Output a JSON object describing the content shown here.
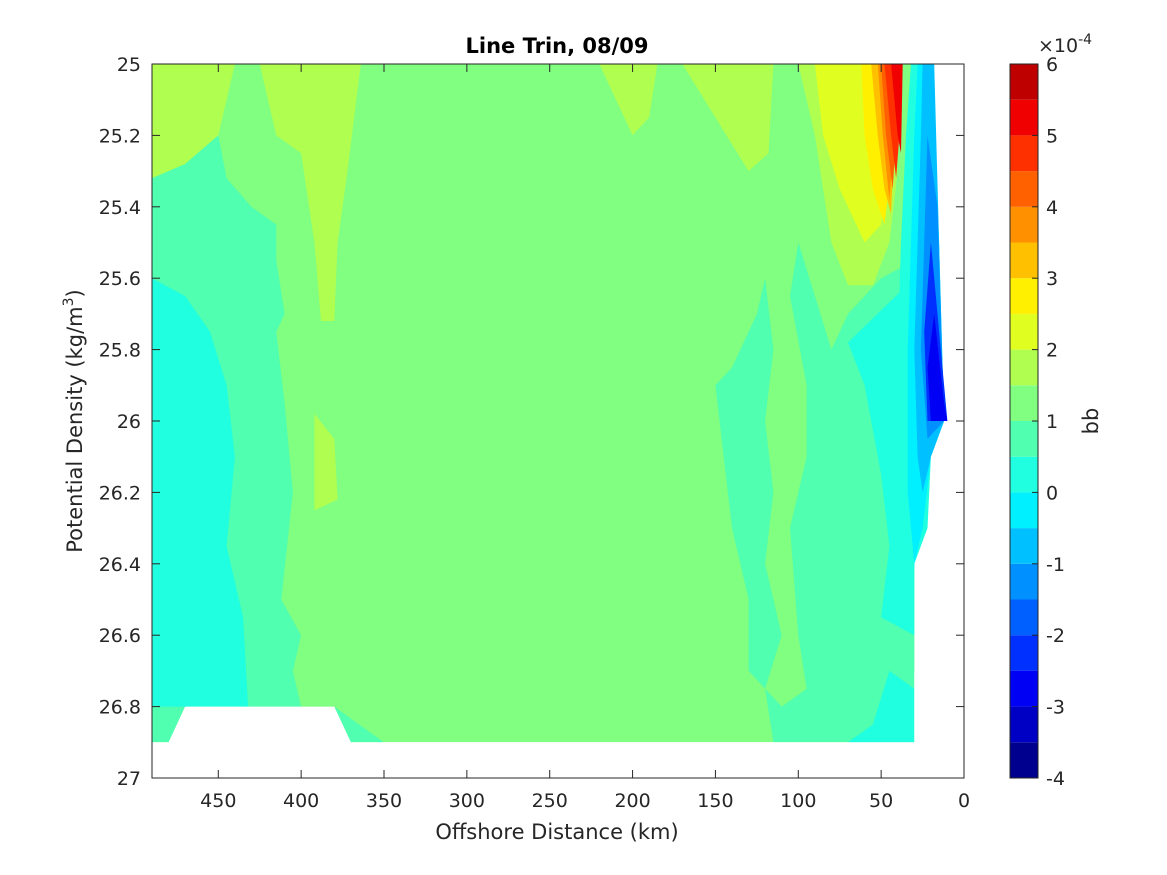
{
  "chart_data": {
    "type": "heatmap",
    "title": "Line Trin, 08/09",
    "xlabel": "Offshore Distance (km)",
    "ylabel_main": "Potential Density (kg/m",
    "ylabel_sup": "3",
    "ylabel_end": ")",
    "xlim": [
      0,
      490
    ],
    "x_reversed": true,
    "ylim": [
      25,
      27
    ],
    "y_reversed": true,
    "x_ticks": [
      450,
      400,
      350,
      300,
      250,
      200,
      150,
      100,
      50,
      0
    ],
    "y_ticks": [
      25,
      25.2,
      25.4,
      25.6,
      25.8,
      26,
      26.2,
      26.4,
      26.6,
      26.8,
      27
    ],
    "x_tick_labels": [
      "450",
      "400",
      "350",
      "300",
      "250",
      "200",
      "150",
      "100",
      "50",
      "0"
    ],
    "y_tick_labels": [
      "25",
      "25.2",
      "25.4",
      "25.6",
      "25.8",
      "26",
      "26.2",
      "26.4",
      "26.6",
      "26.8",
      "27"
    ],
    "colorbar": {
      "label": "bb",
      "multiplier": "×10",
      "exponent": "-4",
      "range": [
        -4,
        6
      ],
      "levels": [
        -4,
        -3.5,
        -3,
        -2.5,
        -2,
        -1.5,
        -1,
        -0.5,
        0,
        0.5,
        1,
        1.5,
        2,
        2.5,
        3,
        3.5,
        4,
        4.5,
        5,
        5.5,
        6
      ],
      "colors": [
        "#00008f",
        "#0000c4",
        "#0000f5",
        "#0030ff",
        "#0060ff",
        "#0090ff",
        "#00c0ff",
        "#00f0ff",
        "#20ffdf",
        "#50ffaf",
        "#80ff80",
        "#b0ff50",
        "#e0ff20",
        "#fff000",
        "#ffc000",
        "#ff9000",
        "#ff6000",
        "#ff3000",
        "#f00000",
        "#bf0000"
      ],
      "tick_values": [
        6,
        5,
        4,
        3,
        2,
        1,
        0,
        -1,
        -2,
        -3,
        -4
      ],
      "tick_labels": [
        "6",
        "5",
        "4",
        "3",
        "2",
        "1",
        "0",
        "-1",
        "-2",
        "-3",
        "-4"
      ]
    },
    "data_coverage": {
      "bottom_boundary": [
        [
          490,
          26.9
        ],
        [
          480,
          26.9
        ],
        [
          470,
          26.8
        ],
        [
          380,
          26.8
        ],
        [
          370,
          26.9
        ],
        [
          30,
          26.9
        ],
        [
          30,
          26.7
        ],
        [
          20,
          26.6
        ],
        [
          20,
          26.1
        ],
        [
          10,
          26.0
        ],
        [
          10,
          25.0
        ]
      ]
    },
    "regions": [
      {
        "level": 1.25,
        "polygon": [
          [
            490,
            25
          ],
          [
            490,
            26.9
          ],
          [
            30,
            26.9
          ],
          [
            30,
            25
          ]
        ]
      },
      {
        "level": 1.75,
        "polygon": [
          [
            490,
            25.0
          ],
          [
            490,
            25.32
          ],
          [
            470,
            25.28
          ],
          [
            450,
            25.2
          ],
          [
            440,
            25.0
          ]
        ]
      },
      {
        "level": 1.75,
        "polygon": [
          [
            410,
            25.0
          ],
          [
            425,
            25.0
          ],
          [
            415,
            25.2
          ],
          [
            400,
            25.25
          ],
          [
            392,
            25.5
          ],
          [
            388,
            25.72
          ],
          [
            380,
            25.72
          ],
          [
            378,
            25.5
          ],
          [
            372,
            25.3
          ],
          [
            364,
            25.0
          ]
        ]
      },
      {
        "level": 1.75,
        "polygon": [
          [
            392,
            25.98
          ],
          [
            380,
            26.05
          ],
          [
            378,
            26.22
          ],
          [
            392,
            26.25
          ]
        ]
      },
      {
        "level": 1.75,
        "polygon": [
          [
            220,
            25.0
          ],
          [
            185,
            25.0
          ],
          [
            190,
            25.15
          ],
          [
            200,
            25.2
          ],
          [
            210,
            25.1
          ]
        ]
      },
      {
        "level": 1.75,
        "polygon": [
          [
            170,
            25.0
          ],
          [
            115,
            25.0
          ],
          [
            118,
            25.25
          ],
          [
            130,
            25.3
          ]
        ]
      },
      {
        "level": 0.75,
        "polygon": [
          [
            490,
            25.32
          ],
          [
            470,
            25.28
          ],
          [
            450,
            25.2
          ],
          [
            445,
            25.32
          ],
          [
            430,
            25.4
          ],
          [
            415,
            25.45
          ],
          [
            415,
            25.55
          ],
          [
            410,
            25.7
          ],
          [
            415,
            25.75
          ],
          [
            410,
            25.95
          ],
          [
            405,
            26.2
          ],
          [
            412,
            26.5
          ],
          [
            400,
            26.6
          ],
          [
            405,
            26.7
          ],
          [
            400,
            26.8
          ],
          [
            380,
            26.8
          ],
          [
            365,
            26.85
          ],
          [
            350,
            26.9
          ],
          [
            490,
            26.9
          ]
        ]
      },
      {
        "level": 0.75,
        "polygon": [
          [
            150,
            25.9
          ],
          [
            140,
            25.85
          ],
          [
            125,
            25.7
          ],
          [
            120,
            25.6
          ],
          [
            115,
            25.8
          ],
          [
            120,
            26.0
          ],
          [
            115,
            26.2
          ],
          [
            120,
            26.4
          ],
          [
            110,
            26.6
          ],
          [
            120,
            26.75
          ],
          [
            115,
            26.9
          ],
          [
            30,
            26.9
          ],
          [
            30,
            25.55
          ],
          [
            50,
            25.6
          ],
          [
            70,
            25.7
          ],
          [
            80,
            25.8
          ],
          [
            90,
            25.65
          ],
          [
            100,
            25.5
          ],
          [
            105,
            25.65
          ],
          [
            95,
            25.9
          ],
          [
            95,
            26.1
          ],
          [
            105,
            26.3
          ],
          [
            100,
            26.6
          ],
          [
            95,
            26.75
          ],
          [
            110,
            26.8
          ],
          [
            130,
            26.7
          ],
          [
            130,
            26.5
          ],
          [
            140,
            26.3
          ],
          [
            145,
            26.1
          ]
        ]
      },
      {
        "level": 0.25,
        "polygon": [
          [
            490,
            25.6
          ],
          [
            470,
            25.65
          ],
          [
            455,
            25.75
          ],
          [
            445,
            25.9
          ],
          [
            440,
            26.1
          ],
          [
            445,
            26.35
          ],
          [
            435,
            26.55
          ],
          [
            432,
            26.8
          ],
          [
            490,
            26.8
          ]
        ]
      },
      {
        "level": 0.25,
        "polygon": [
          [
            55,
            26.85
          ],
          [
            70,
            26.9
          ],
          [
            30,
            26.9
          ],
          [
            30,
            26.75
          ],
          [
            45,
            26.7
          ]
        ]
      },
      {
        "level": 0.25,
        "polygon": [
          [
            70,
            25.78
          ],
          [
            60,
            25.9
          ],
          [
            50,
            26.15
          ],
          [
            45,
            26.35
          ],
          [
            50,
            26.55
          ],
          [
            30,
            26.6
          ],
          [
            30,
            25.6
          ]
        ]
      },
      {
        "level": 1.75,
        "polygon": [
          [
            100,
            25.0
          ],
          [
            90,
            25.2
          ],
          [
            85,
            25.35
          ],
          [
            80,
            25.5
          ],
          [
            70,
            25.62
          ],
          [
            55,
            25.62
          ],
          [
            45,
            25.5
          ],
          [
            40,
            25.3
          ],
          [
            50,
            25.0
          ]
        ]
      },
      {
        "level": 2.25,
        "polygon": [
          [
            90,
            25.0
          ],
          [
            85,
            25.2
          ],
          [
            75,
            25.35
          ],
          [
            60,
            25.5
          ],
          [
            50,
            25.45
          ],
          [
            45,
            25.2
          ],
          [
            50,
            25.0
          ]
        ]
      },
      {
        "level": 2.75,
        "polygon": [
          [
            62,
            25.0
          ],
          [
            60,
            25.2
          ],
          [
            55,
            25.35
          ],
          [
            48,
            25.45
          ],
          [
            44,
            25.3
          ],
          [
            45,
            25.0
          ]
        ]
      },
      {
        "level": 3.25,
        "polygon": [
          [
            56,
            25.0
          ],
          [
            52,
            25.2
          ],
          [
            48,
            25.35
          ],
          [
            44,
            25.42
          ],
          [
            42,
            25.2
          ],
          [
            44,
            25.0
          ]
        ]
      },
      {
        "level": 3.75,
        "polygon": [
          [
            52,
            25.0
          ],
          [
            49,
            25.2
          ],
          [
            45,
            25.38
          ],
          [
            42,
            25.2
          ],
          [
            42,
            25.0
          ]
        ]
      },
      {
        "level": 4.25,
        "polygon": [
          [
            50,
            25.0
          ],
          [
            47,
            25.2
          ],
          [
            43,
            25.35
          ],
          [
            41,
            25.2
          ],
          [
            41,
            25.0
          ]
        ]
      },
      {
        "level": 4.75,
        "polygon": [
          [
            48,
            25.0
          ],
          [
            44,
            25.2
          ],
          [
            41,
            25.32
          ],
          [
            39,
            25.2
          ],
          [
            40,
            25.0
          ]
        ]
      },
      {
        "level": 5.25,
        "polygon": [
          [
            44,
            25.0
          ],
          [
            40,
            25.2
          ],
          [
            38,
            25.25
          ],
          [
            37,
            25.0
          ]
        ]
      },
      {
        "level": 0.25,
        "polygon": [
          [
            32,
            25.0
          ],
          [
            25,
            25.0
          ],
          [
            20,
            25.5
          ],
          [
            15,
            26.0
          ],
          [
            20,
            26.1
          ],
          [
            22,
            26.3
          ],
          [
            30,
            26.4
          ],
          [
            32,
            26.6
          ],
          [
            35,
            26.5
          ],
          [
            38,
            26.2
          ],
          [
            40,
            25.8
          ],
          [
            38,
            25.5
          ],
          [
            35,
            25.2
          ]
        ]
      },
      {
        "level": -0.25,
        "polygon": [
          [
            28,
            25.0
          ],
          [
            20,
            25.0
          ],
          [
            15,
            25.5
          ],
          [
            12,
            26.0
          ],
          [
            20,
            26.1
          ],
          [
            25,
            26.3
          ],
          [
            30,
            26.4
          ],
          [
            34,
            26.2
          ],
          [
            34,
            25.8
          ],
          [
            32,
            25.5
          ],
          [
            30,
            25.2
          ]
        ]
      },
      {
        "level": -0.75,
        "polygon": [
          [
            25,
            25.0
          ],
          [
            18,
            25.0
          ],
          [
            15,
            25.5
          ],
          [
            12,
            26.0
          ],
          [
            20,
            26.1
          ],
          [
            25,
            26.2
          ],
          [
            28,
            26.1
          ],
          [
            30,
            25.8
          ],
          [
            28,
            25.5
          ],
          [
            26,
            25.2
          ]
        ]
      },
      {
        "level": -1.25,
        "polygon": [
          [
            22,
            25.2
          ],
          [
            16,
            25.4
          ],
          [
            12,
            26.0
          ],
          [
            22,
            26.05
          ],
          [
            26,
            25.8
          ],
          [
            24,
            25.5
          ]
        ]
      },
      {
        "level": -2.25,
        "polygon": [
          [
            20,
            25.5
          ],
          [
            14,
            25.8
          ],
          [
            10,
            26.0
          ],
          [
            22,
            26.0
          ],
          [
            24,
            25.75
          ]
        ]
      },
      {
        "level": -3.0,
        "polygon": [
          [
            18,
            25.7
          ],
          [
            12,
            25.95
          ],
          [
            10,
            26.0
          ],
          [
            20,
            26.0
          ],
          [
            22,
            25.85
          ]
        ]
      }
    ]
  }
}
